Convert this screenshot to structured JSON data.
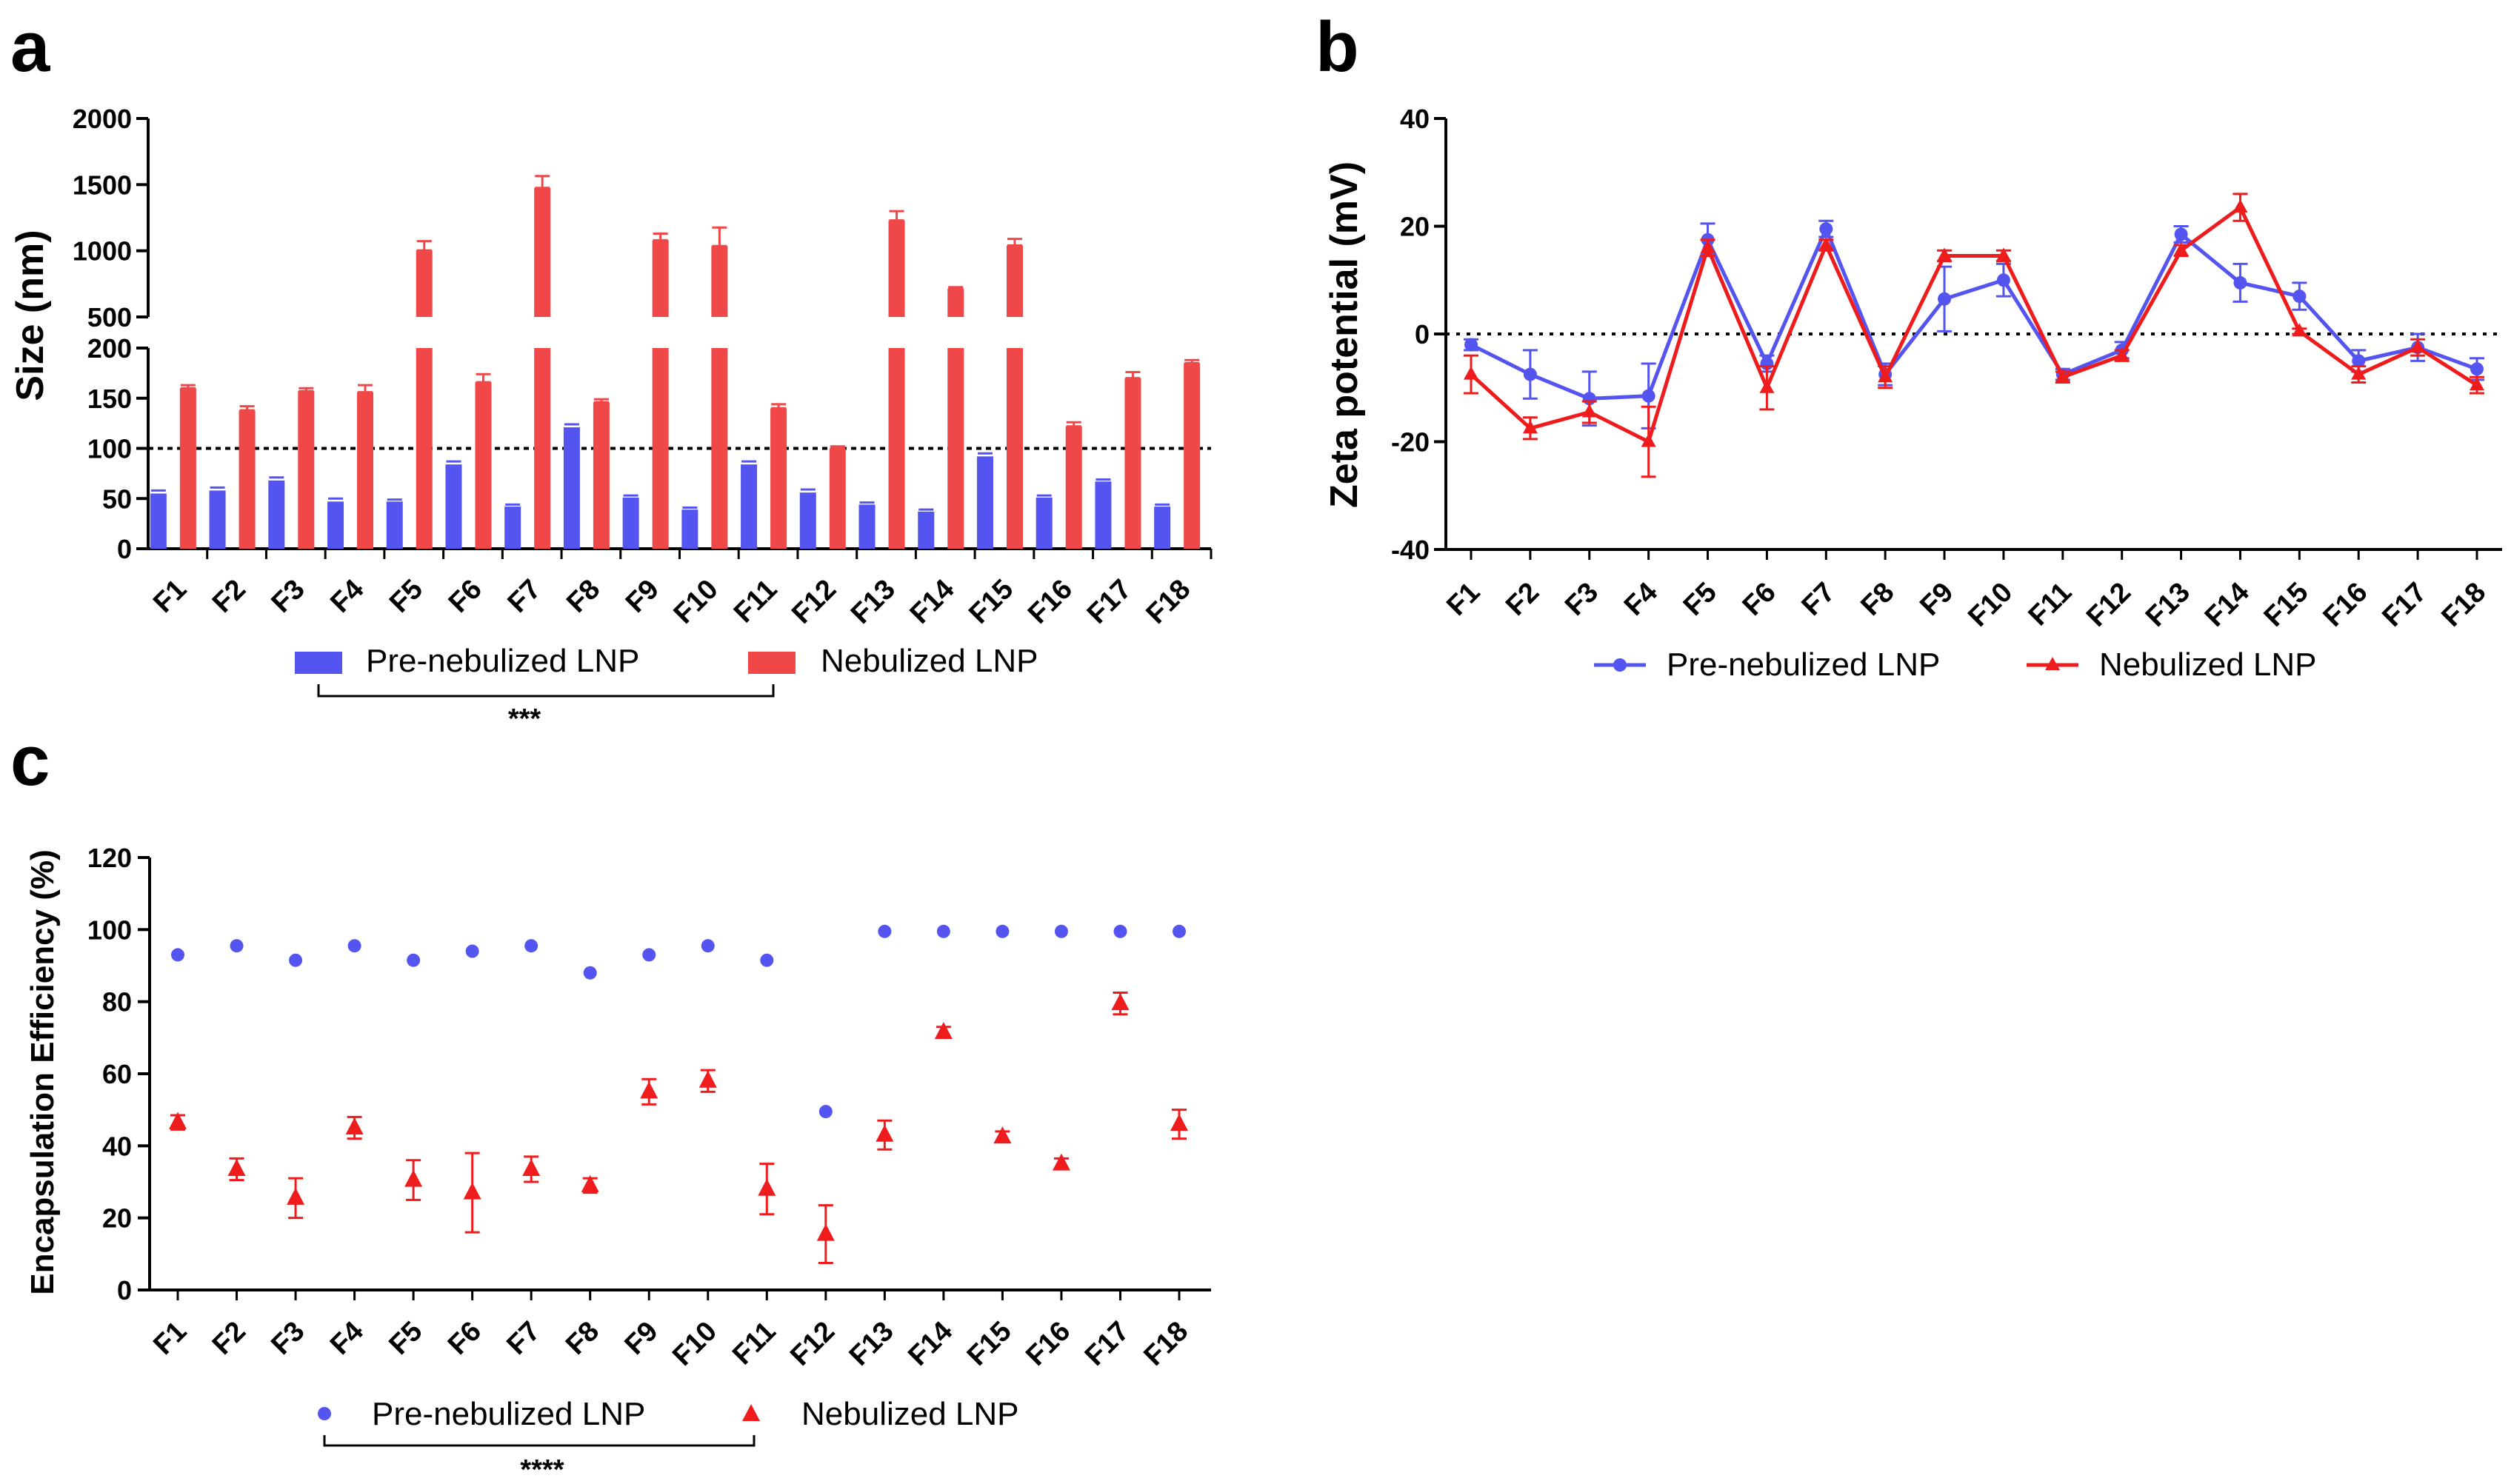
{
  "colors": {
    "pre": "#5454f0",
    "neb": "#f04848",
    "neb_line": "#ee1c1c",
    "axis": "#000000"
  },
  "chart_data": [
    {
      "panel": "a",
      "type": "bar",
      "ylabel": "Size (nm)",
      "xlabel": "",
      "categories": [
        "F1",
        "F2",
        "F3",
        "F4",
        "F5",
        "F6",
        "F7",
        "F8",
        "F9",
        "F10",
        "F11",
        "F12",
        "F13",
        "F14",
        "F15",
        "F16",
        "F17",
        "F18"
      ],
      "series": [
        {
          "name": "Pre-nebulized LNP",
          "values": [
            55,
            58,
            68,
            47,
            47,
            84,
            42,
            121,
            51,
            39,
            84,
            56,
            44,
            37,
            92,
            51,
            67,
            42
          ],
          "errors": [
            3,
            3,
            3,
            3,
            2,
            3,
            2,
            3,
            2,
            2,
            3,
            3,
            2,
            2,
            3,
            2,
            2,
            2
          ]
        },
        {
          "name": "Nebulized LNP",
          "values": [
            160,
            138,
            157,
            156,
            1003,
            166,
            1475,
            146,
            1080,
            1036,
            140,
            100,
            1230,
            715,
            1040,
            122,
            170,
            185
          ],
          "errors": [
            3,
            4,
            3,
            7,
            70,
            8,
            90,
            3,
            50,
            140,
            4,
            2,
            70,
            10,
            50,
            4,
            6,
            3
          ]
        }
      ],
      "y_break": {
        "lower_segment": [
          0,
          200
        ],
        "upper_segment": [
          500,
          2000
        ]
      },
      "lower_ticks": [
        "0",
        "50",
        "100",
        "150",
        "200"
      ],
      "upper_ticks": [
        "500",
        "1000",
        "1500",
        "2000"
      ],
      "reference_line_y": 100,
      "significance": "***"
    },
    {
      "panel": "b",
      "type": "line",
      "ylabel": "Zeta potential (mV)",
      "xlabel": "",
      "ylim": [
        -40,
        40
      ],
      "yticks": [
        "-40",
        "-20",
        "0",
        "20",
        "40"
      ],
      "categories": [
        "F1",
        "F2",
        "F3",
        "F4",
        "F5",
        "F6",
        "F7",
        "F8",
        "F9",
        "F10",
        "F11",
        "F12",
        "F13",
        "F14",
        "F15",
        "F16",
        "F17",
        "F18"
      ],
      "series": [
        {
          "name": "Pre-nebulized LNP",
          "values": [
            -2,
            -7.5,
            -12,
            -11.5,
            17.5,
            -5.5,
            19.5,
            -7.5,
            6.5,
            10,
            -7.5,
            -3,
            18.5,
            9.5,
            7,
            -5,
            -2.5,
            -6.5
          ],
          "errors": [
            1,
            4.5,
            5,
            6,
            3,
            1.5,
            1.5,
            2,
            6,
            3,
            1,
            1.5,
            1.5,
            3.5,
            2.5,
            2,
            2.5,
            2
          ]
        },
        {
          "name": "Nebulized LNP",
          "values": [
            -7.5,
            -17.5,
            -14.5,
            -20,
            16,
            -10,
            16.5,
            -8,
            14.5,
            14.5,
            -8,
            -4,
            15.5,
            23.5,
            0.5,
            -7.5,
            -2.5,
            -9.5
          ],
          "errors": [
            3.5,
            2,
            2,
            6.5,
            1.5,
            4,
            1,
            2,
            1,
            1,
            1,
            1,
            1,
            2.5,
            0.5,
            1.5,
            1.5,
            1.5
          ]
        }
      ],
      "reference_line_y": 0
    },
    {
      "panel": "c",
      "type": "scatter",
      "ylabel": "Encapsulation Efficiency (%)",
      "xlabel": "",
      "ylim": [
        0,
        120
      ],
      "yticks": [
        "0",
        "20",
        "40",
        "60",
        "80",
        "100",
        "120"
      ],
      "categories": [
        "F1",
        "F2",
        "F3",
        "F4",
        "F5",
        "F6",
        "F7",
        "F8",
        "F9",
        "F10",
        "F11",
        "F12",
        "F13",
        "F14",
        "F15",
        "F16",
        "F17",
        "F18"
      ],
      "series": [
        {
          "name": "Pre-nebulized LNP",
          "values": [
            93,
            95.5,
            91.5,
            95.5,
            91.5,
            94,
            95.5,
            88,
            93,
            95.5,
            91.5,
            49.5,
            99.5,
            99.5,
            99.5,
            99.5,
            99.5,
            99.5
          ],
          "errors": [
            0,
            0,
            0,
            0,
            0,
            0,
            0,
            0,
            0,
            0,
            0,
            0,
            0,
            0,
            0,
            0,
            0,
            0
          ]
        },
        {
          "name": "Nebulized LNP",
          "values": [
            46.5,
            33.5,
            25.5,
            45,
            30.5,
            27,
            33.5,
            29,
            55,
            58,
            28,
            15.5,
            43,
            71.5,
            42.5,
            35,
            79.5,
            46
          ],
          "errors": [
            2,
            3,
            5.5,
            3,
            5.5,
            11,
            3.5,
            2,
            3.5,
            3,
            7,
            8,
            4,
            1.5,
            1.5,
            1.5,
            3,
            4
          ]
        }
      ],
      "significance": "****"
    }
  ]
}
